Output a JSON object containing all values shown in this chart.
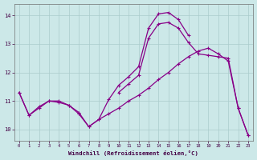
{
  "xlabel": "Windchill (Refroidissement éolien,°C)",
  "bg_color": "#cce8e8",
  "grid_color": "#aacccc",
  "line_color": "#880088",
  "hours": [
    0,
    1,
    2,
    3,
    4,
    5,
    6,
    7,
    8,
    9,
    10,
    11,
    12,
    13,
    14,
    15,
    16,
    17,
    18,
    19,
    20,
    21,
    22,
    23
  ],
  "series1": [
    11.3,
    10.5,
    10.8,
    11.0,
    11.0,
    10.85,
    10.6,
    10.1,
    10.35,
    11.05,
    11.55,
    11.85,
    12.2,
    13.55,
    14.05,
    14.1,
    13.85,
    13.3,
    null,
    null,
    null,
    null,
    null,
    null
  ],
  "series2": [
    11.3,
    10.5,
    10.75,
    11.0,
    10.95,
    10.85,
    10.55,
    10.1,
    10.35,
    10.55,
    10.75,
    11.0,
    11.2,
    11.45,
    11.75,
    12.0,
    12.3,
    12.55,
    12.75,
    12.85,
    12.65,
    12.4,
    10.75,
    9.8
  ],
  "series3": [
    null,
    null,
    null,
    null,
    null,
    null,
    null,
    null,
    null,
    null,
    11.3,
    11.6,
    11.9,
    13.2,
    13.7,
    13.75,
    13.55,
    13.05,
    12.65,
    12.6,
    12.55,
    12.5,
    10.75,
    9.8
  ],
  "ylim": [
    9.6,
    14.4
  ],
  "yticks": [
    10,
    11,
    12,
    13,
    14
  ],
  "xticks": [
    0,
    1,
    2,
    3,
    4,
    5,
    6,
    7,
    8,
    9,
    10,
    11,
    12,
    13,
    14,
    15,
    16,
    17,
    18,
    19,
    20,
    21,
    22,
    23
  ]
}
